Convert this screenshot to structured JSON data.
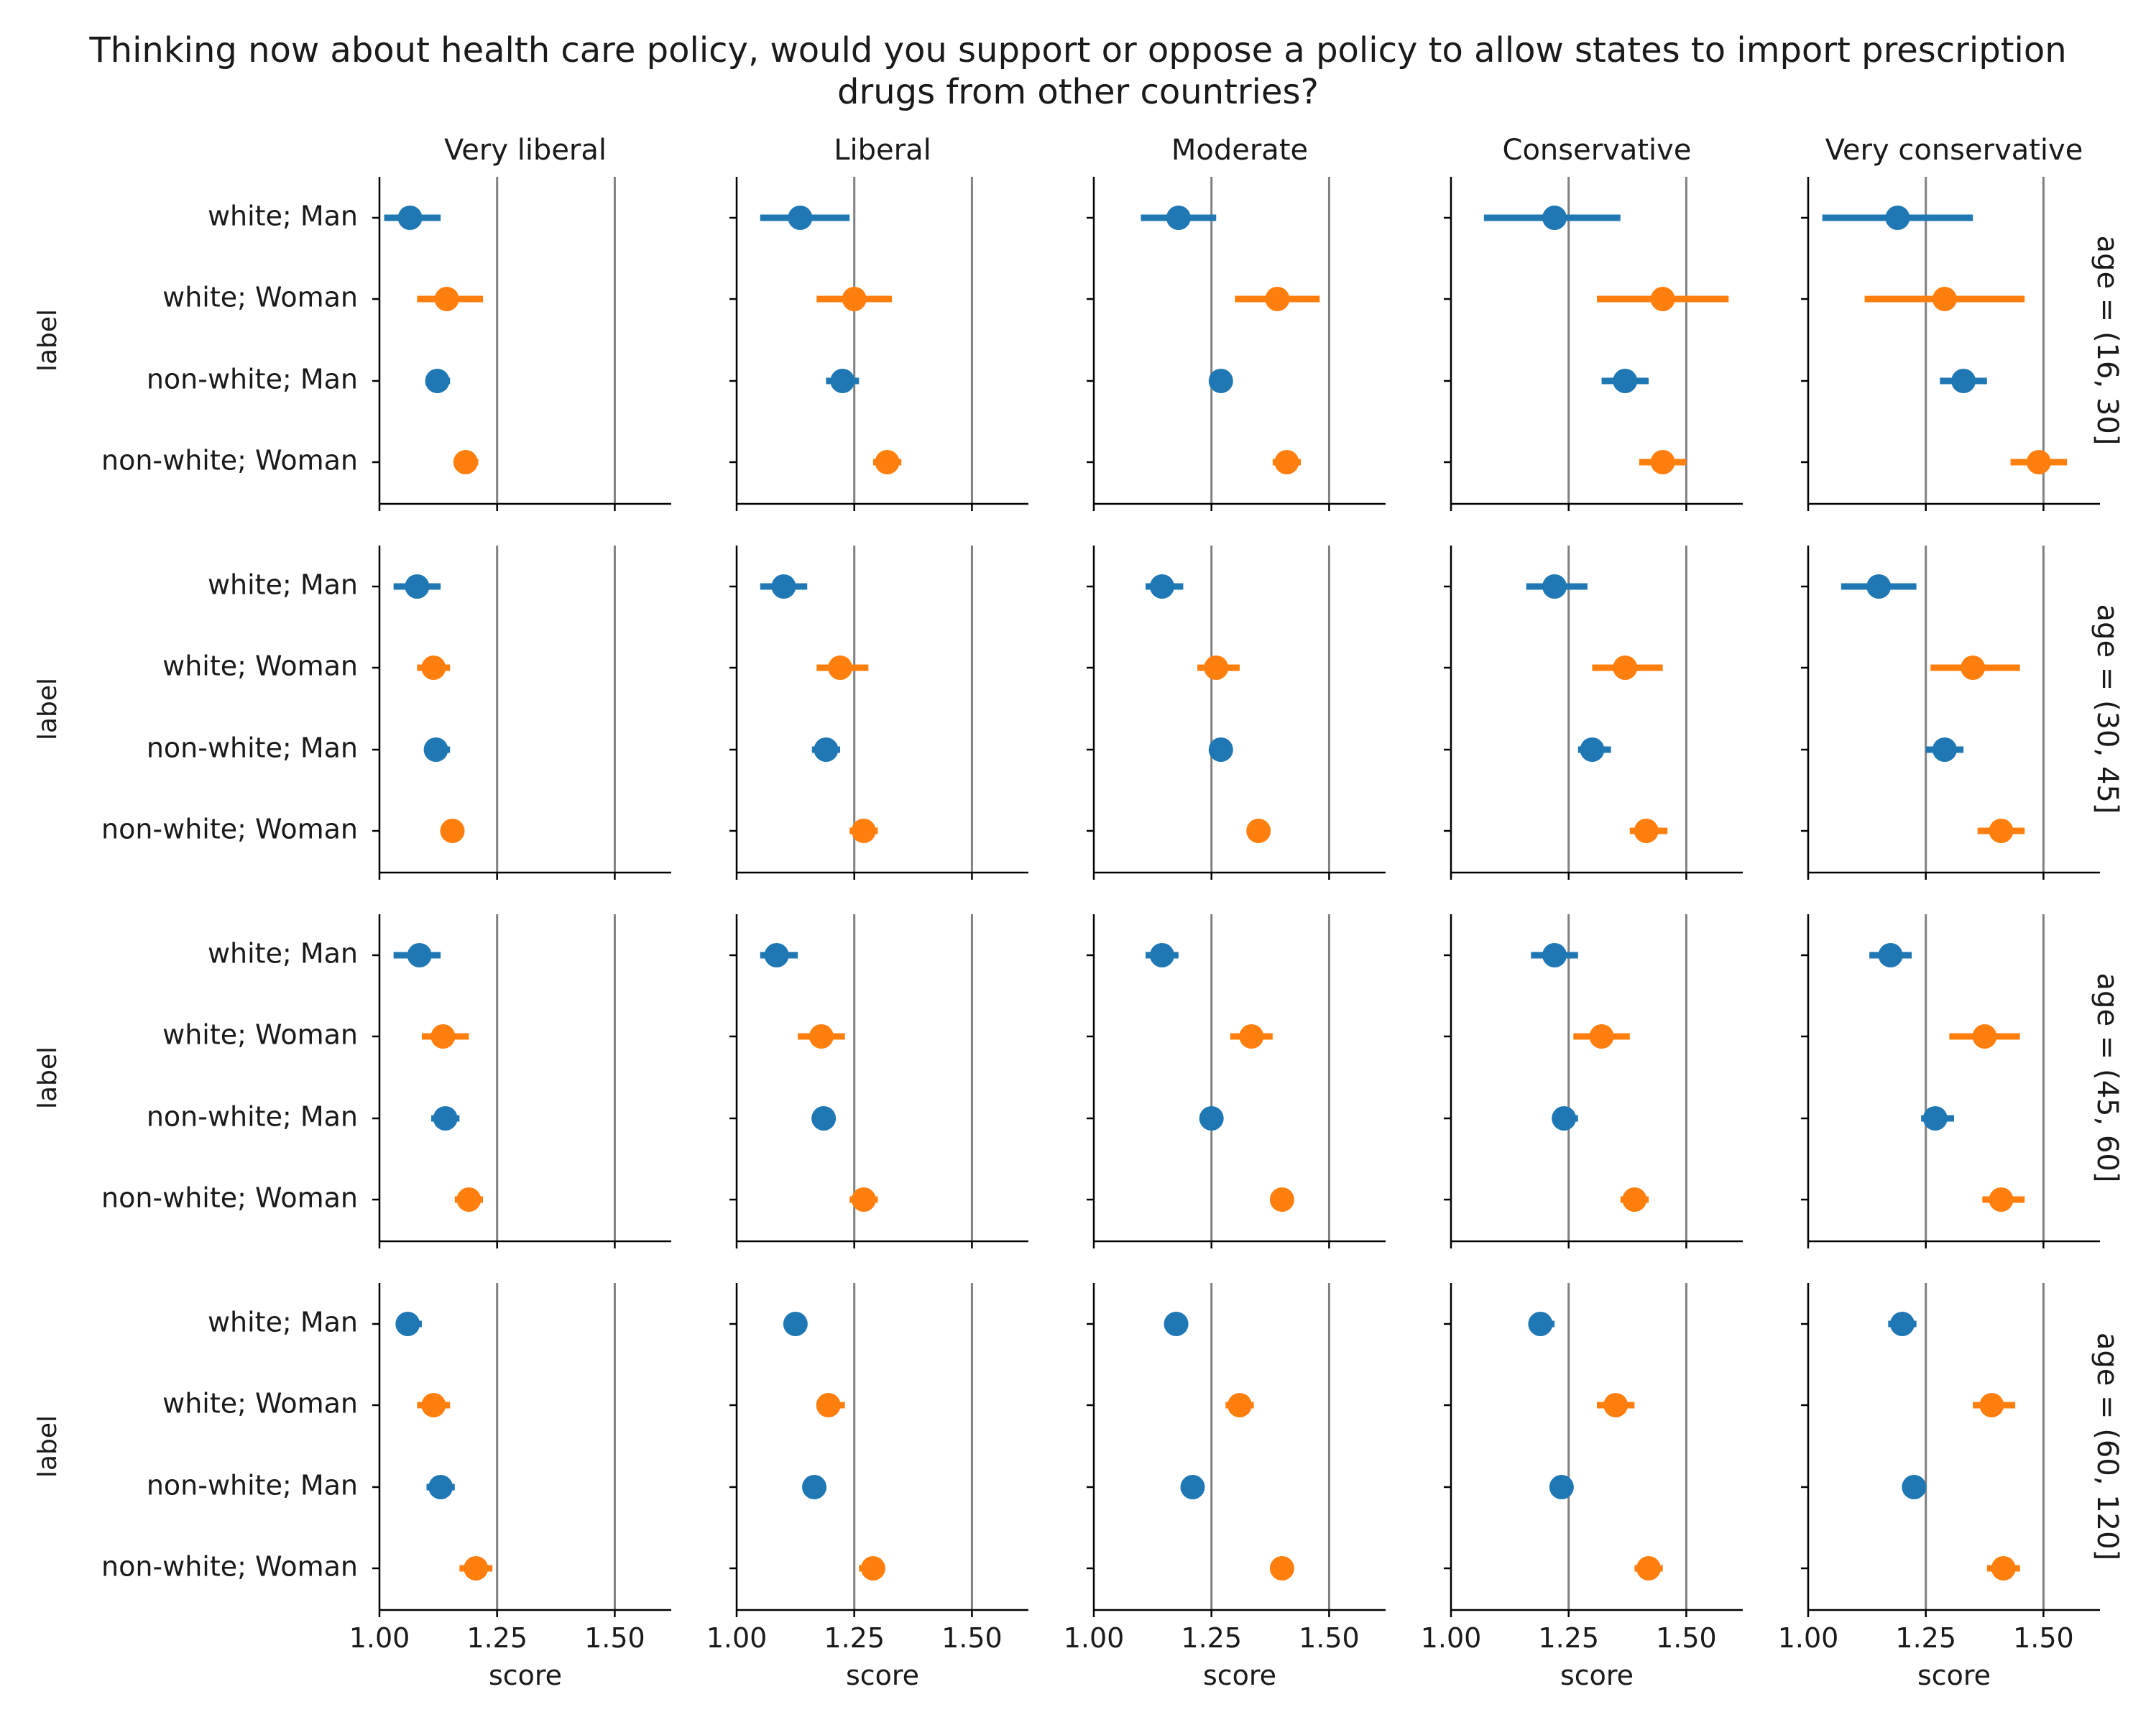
{
  "chart_data": {
    "type": "pointplot-facets",
    "title": "Thinking now about health care policy, would you support or oppose a policy to allow states to import prescription drugs from other countries?",
    "xlabel": "score",
    "ylabel": "label",
    "xlim": [
      1.0,
      1.62
    ],
    "xticks": [
      1.0,
      1.25,
      1.5
    ],
    "xtick_labels": [
      "1.00",
      "1.25",
      "1.50"
    ],
    "reference_lines": [
      1.25,
      1.5
    ],
    "categories": [
      "white; Man",
      "white; Woman",
      "non-white; Man",
      "non-white; Woman"
    ],
    "category_colors": [
      "#1f77b4",
      "#ff7f0e",
      "#1f77b4",
      "#ff7f0e"
    ],
    "columns": [
      "Very liberal",
      "Liberal",
      "Moderate",
      "Conservative",
      "Very conservative"
    ],
    "rows": [
      "age = (16, 30]",
      "age = (30, 45]",
      "age = (45, 60]",
      "age = (60, 120]"
    ],
    "panels": [
      [
        {
          "values": [
            1.065,
            1.143,
            1.123,
            1.183
          ],
          "ci": [
            [
              1.01,
              1.13
            ],
            [
              1.08,
              1.22
            ],
            [
              1.1,
              1.15
            ],
            [
              1.16,
              1.21
            ]
          ]
        },
        {
          "values": [
            1.135,
            1.25,
            1.225,
            1.32
          ],
          "ci": [
            [
              1.05,
              1.24
            ],
            [
              1.17,
              1.33
            ],
            [
              1.19,
              1.26
            ],
            [
              1.29,
              1.35
            ]
          ]
        },
        {
          "values": [
            1.18,
            1.39,
            1.27,
            1.41
          ],
          "ci": [
            [
              1.1,
              1.26
            ],
            [
              1.3,
              1.48
            ],
            [
              1.25,
              1.29
            ],
            [
              1.38,
              1.44
            ]
          ]
        },
        {
          "values": [
            1.22,
            1.45,
            1.37,
            1.45
          ],
          "ci": [
            [
              1.07,
              1.36
            ],
            [
              1.31,
              1.59
            ],
            [
              1.32,
              1.42
            ],
            [
              1.4,
              1.5
            ]
          ]
        },
        {
          "values": [
            1.19,
            1.29,
            1.33,
            1.49
          ],
          "ci": [
            [
              1.03,
              1.35
            ],
            [
              1.12,
              1.46
            ],
            [
              1.28,
              1.38
            ],
            [
              1.43,
              1.55
            ]
          ]
        }
      ],
      [
        {
          "values": [
            1.08,
            1.115,
            1.12,
            1.155
          ],
          "ci": [
            [
              1.03,
              1.13
            ],
            [
              1.08,
              1.15
            ],
            [
              1.1,
              1.15
            ],
            [
              1.13,
              1.18
            ]
          ]
        },
        {
          "values": [
            1.1,
            1.22,
            1.19,
            1.27
          ],
          "ci": [
            [
              1.05,
              1.15
            ],
            [
              1.17,
              1.28
            ],
            [
              1.16,
              1.22
            ],
            [
              1.24,
              1.3
            ]
          ]
        },
        {
          "values": [
            1.145,
            1.26,
            1.27,
            1.35
          ],
          "ci": [
            [
              1.11,
              1.19
            ],
            [
              1.22,
              1.31
            ],
            [
              1.25,
              1.29
            ],
            [
              1.33,
              1.36
            ]
          ]
        },
        {
          "values": [
            1.22,
            1.37,
            1.3,
            1.415
          ],
          "ci": [
            [
              1.16,
              1.29
            ],
            [
              1.3,
              1.45
            ],
            [
              1.27,
              1.34
            ],
            [
              1.38,
              1.46
            ]
          ]
        },
        {
          "values": [
            1.15,
            1.35,
            1.29,
            1.41
          ],
          "ci": [
            [
              1.07,
              1.23
            ],
            [
              1.26,
              1.45
            ],
            [
              1.25,
              1.33
            ],
            [
              1.36,
              1.46
            ]
          ]
        }
      ],
      [
        {
          "values": [
            1.085,
            1.135,
            1.14,
            1.19
          ],
          "ci": [
            [
              1.03,
              1.13
            ],
            [
              1.09,
              1.19
            ],
            [
              1.11,
              1.17
            ],
            [
              1.16,
              1.22
            ]
          ]
        },
        {
          "values": [
            1.085,
            1.18,
            1.185,
            1.27
          ],
          "ci": [
            [
              1.05,
              1.13
            ],
            [
              1.13,
              1.23
            ],
            [
              1.16,
              1.21
            ],
            [
              1.24,
              1.3
            ]
          ]
        },
        {
          "values": [
            1.145,
            1.335,
            1.25,
            1.4
          ],
          "ci": [
            [
              1.11,
              1.18
            ],
            [
              1.29,
              1.38
            ],
            [
              1.24,
              1.27
            ],
            [
              1.38,
              1.42
            ]
          ]
        },
        {
          "values": [
            1.22,
            1.32,
            1.24,
            1.39
          ],
          "ci": [
            [
              1.17,
              1.27
            ],
            [
              1.26,
              1.38
            ],
            [
              1.22,
              1.27
            ],
            [
              1.36,
              1.42
            ]
          ]
        },
        {
          "values": [
            1.175,
            1.375,
            1.27,
            1.41
          ],
          "ci": [
            [
              1.13,
              1.22
            ],
            [
              1.3,
              1.45
            ],
            [
              1.24,
              1.31
            ],
            [
              1.37,
              1.46
            ]
          ]
        }
      ],
      [
        {
          "values": [
            1.06,
            1.115,
            1.13,
            1.205
          ],
          "ci": [
            [
              1.04,
              1.09
            ],
            [
              1.08,
              1.15
            ],
            [
              1.1,
              1.16
            ],
            [
              1.17,
              1.24
            ]
          ]
        },
        {
          "values": [
            1.125,
            1.195,
            1.165,
            1.29
          ],
          "ci": [
            [
              1.1,
              1.15
            ],
            [
              1.17,
              1.23
            ],
            [
              1.15,
              1.19
            ],
            [
              1.26,
              1.31
            ]
          ]
        },
        {
          "values": [
            1.175,
            1.31,
            1.21,
            1.4
          ],
          "ci": [
            [
              1.15,
              1.2
            ],
            [
              1.28,
              1.34
            ],
            [
              1.2,
              1.22
            ],
            [
              1.39,
              1.41
            ]
          ]
        },
        {
          "values": [
            1.19,
            1.35,
            1.235,
            1.42
          ],
          "ci": [
            [
              1.17,
              1.22
            ],
            [
              1.31,
              1.39
            ],
            [
              1.23,
              1.25
            ],
            [
              1.39,
              1.45
            ]
          ]
        },
        {
          "values": [
            1.2,
            1.39,
            1.225,
            1.415
          ],
          "ci": [
            [
              1.17,
              1.23
            ],
            [
              1.35,
              1.44
            ],
            [
              1.2,
              1.25
            ],
            [
              1.38,
              1.45
            ]
          ]
        }
      ]
    ]
  }
}
